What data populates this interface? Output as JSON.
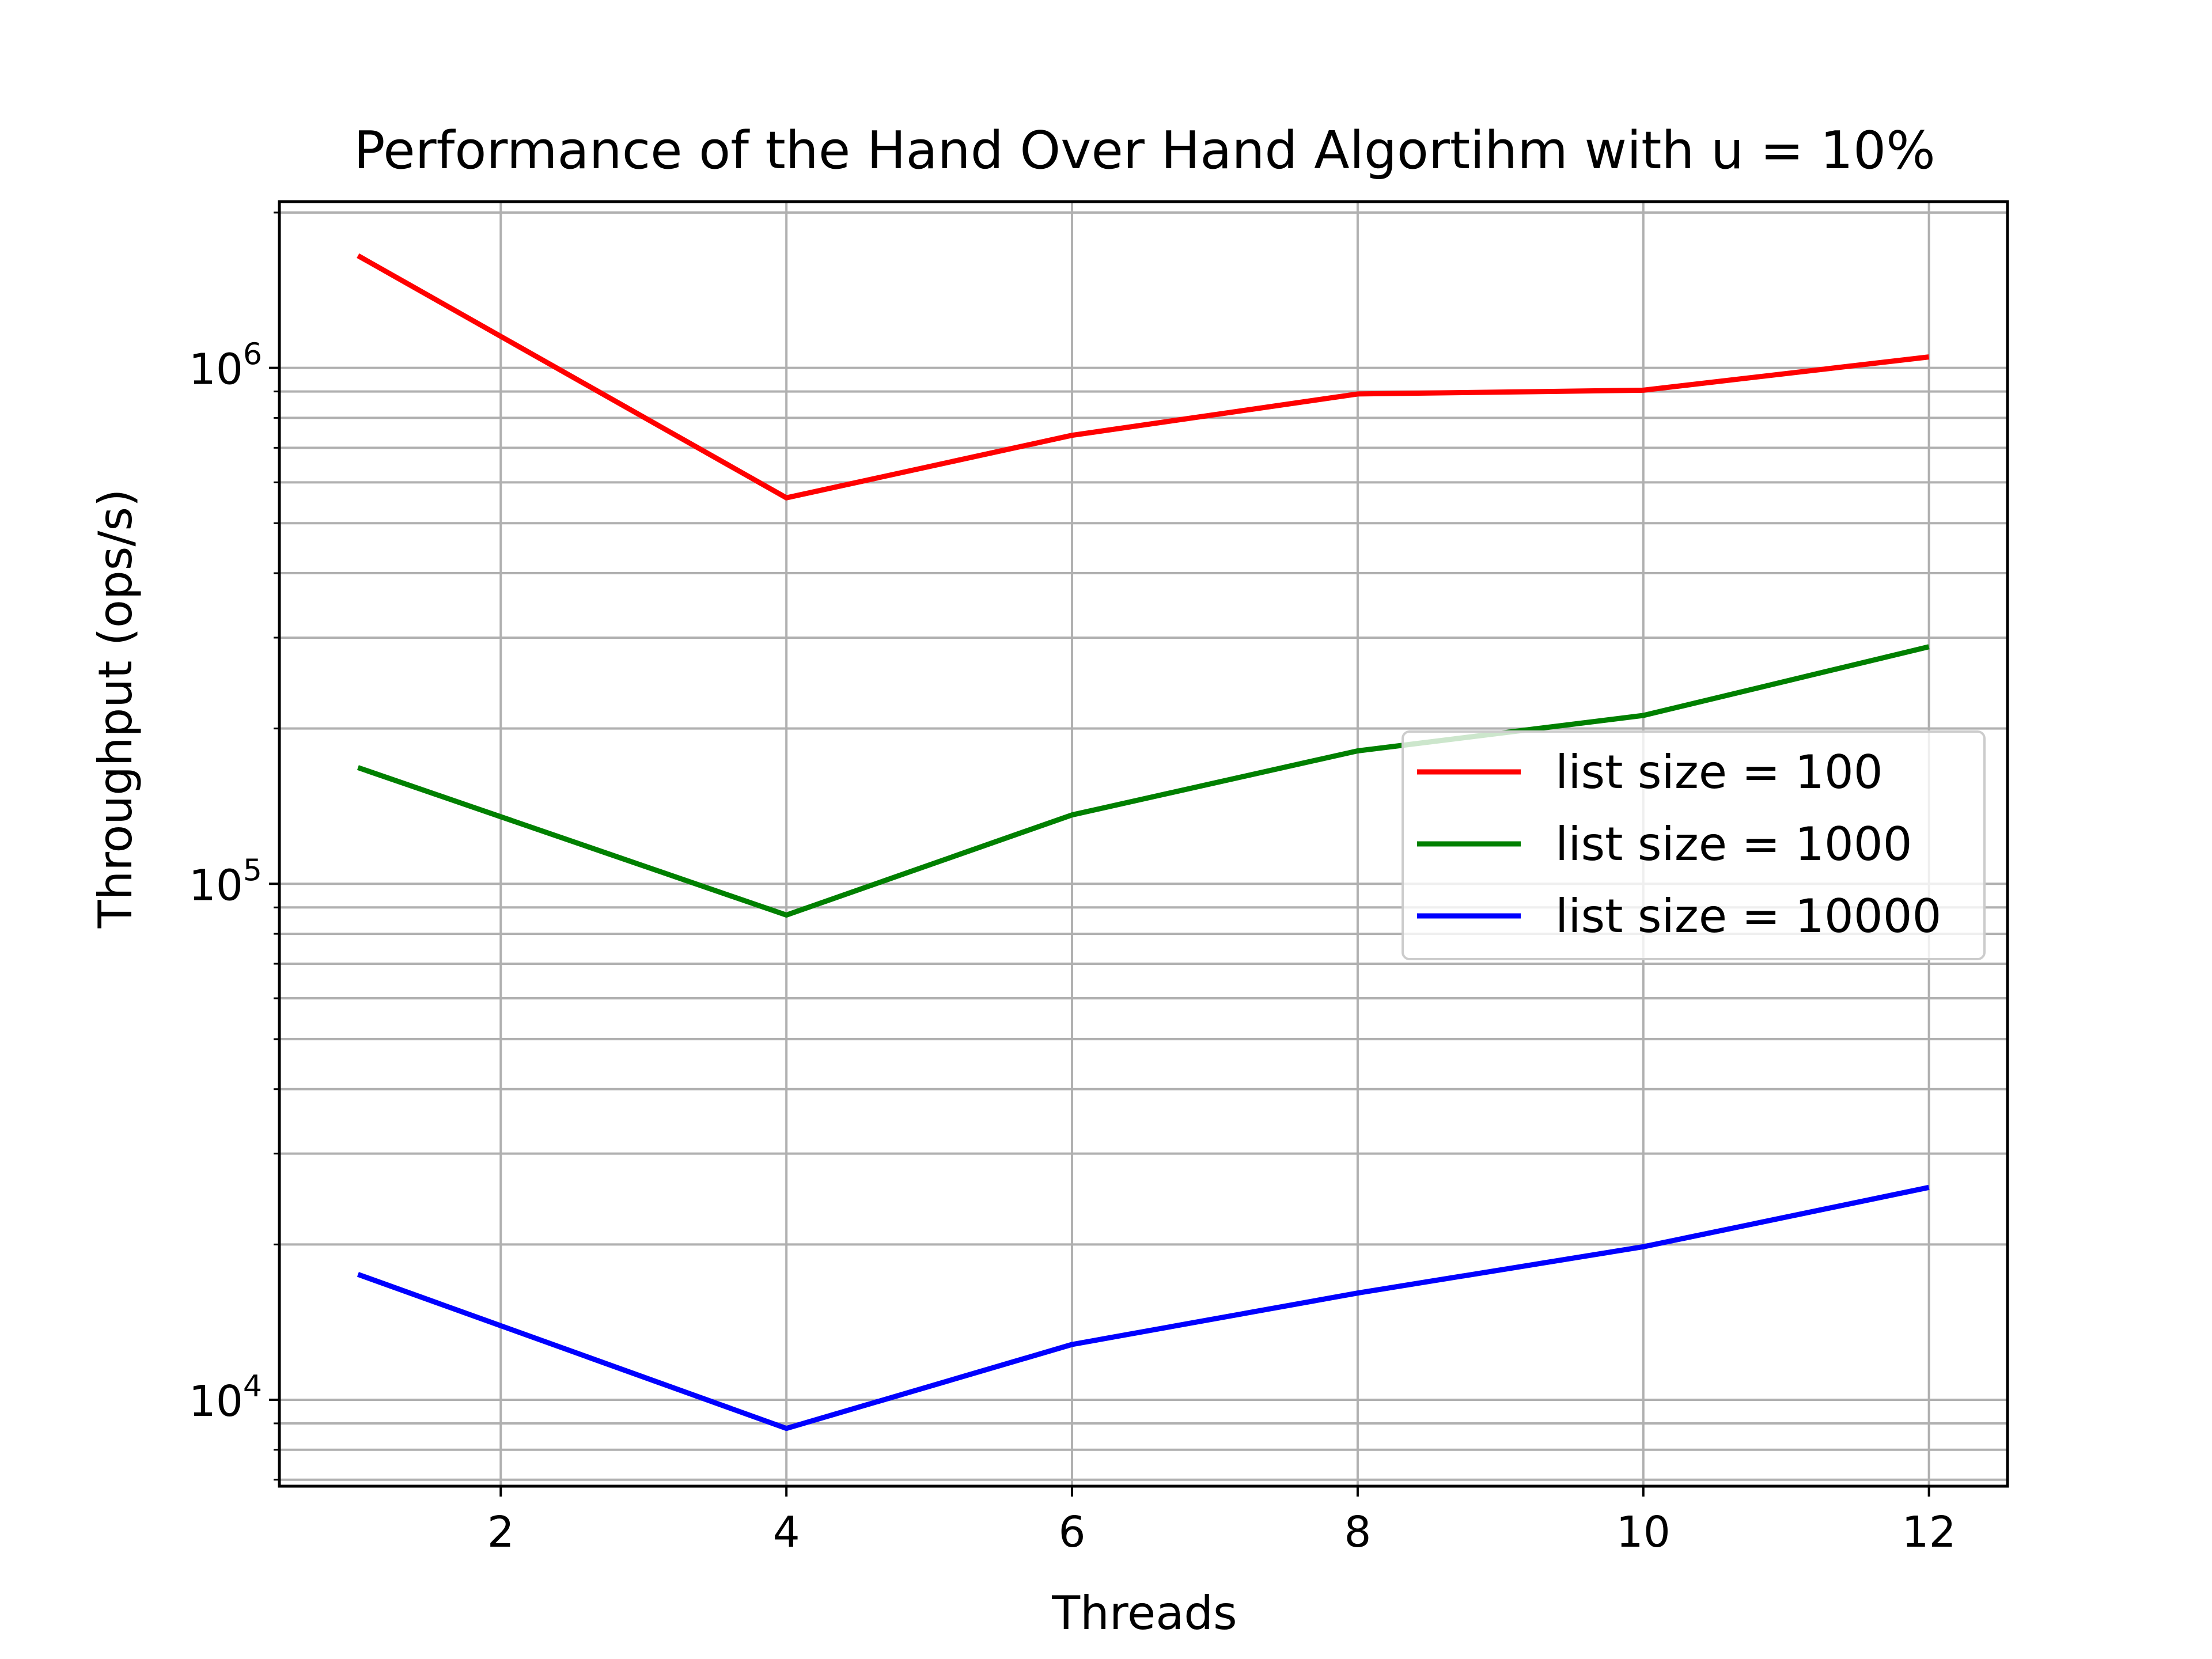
{
  "chart_data": {
    "type": "line",
    "title": "Performance of the Hand Over Hand Algortihm with u = 10%",
    "xlabel": "Threads",
    "ylabel": "Throughput (ops/s)",
    "yscale": "log",
    "xlim": [
      0.45,
      12.55
    ],
    "ylim": [
      6800,
      2100000
    ],
    "xticks": [
      2,
      4,
      6,
      8,
      10,
      12
    ],
    "yticks": [
      {
        "value": 10000,
        "base": "10",
        "exp": "4"
      },
      {
        "value": 100000,
        "base": "10",
        "exp": "5"
      },
      {
        "value": 1000000,
        "base": "10",
        "exp": "6"
      }
    ],
    "grid": "major and minor",
    "legend_position": "center-right",
    "x": [
      1,
      4,
      6,
      8,
      10,
      12
    ],
    "series": [
      {
        "name": "list size = 100",
        "color": "#ff0000",
        "values": [
          1650000,
          560000,
          740000,
          890000,
          905000,
          1050000
        ]
      },
      {
        "name": "list size = 1000",
        "color": "#008000",
        "values": [
          168000,
          87000,
          136000,
          181000,
          212000,
          288000
        ]
      },
      {
        "name": "list size = 10000",
        "color": "#0000ff",
        "values": [
          17500,
          8800,
          12800,
          16100,
          19800,
          25800
        ]
      }
    ]
  }
}
